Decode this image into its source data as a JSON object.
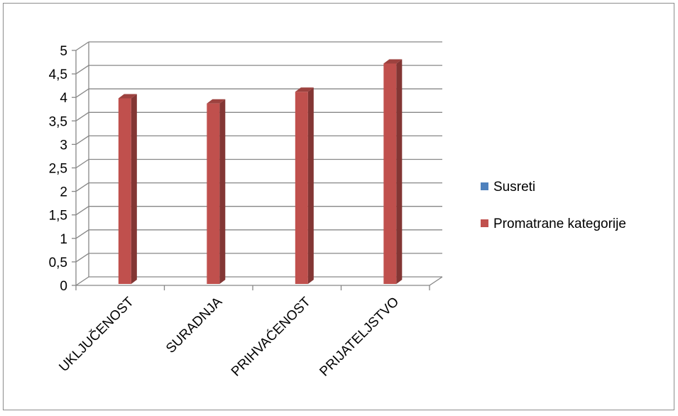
{
  "chart_data": {
    "type": "bar",
    "title": "",
    "xlabel": "",
    "ylabel": "",
    "categories": [
      "UKLJUČENOST",
      "SURADNJA",
      "PRIHVAĆENOST",
      "PRIJATELJSTVO"
    ],
    "series": [
      {
        "name": "Susreti",
        "values": [
          0,
          0,
          0,
          0
        ],
        "color": "#4f81bd"
      },
      {
        "name": "Promatrane kategorije",
        "values": [
          3.98,
          3.87,
          4.12,
          4.72
        ],
        "color": "#c0504d"
      }
    ],
    "y_ticks": [
      "0",
      "0,5",
      "1",
      "1,5",
      "2",
      "2,5",
      "3",
      "3,5",
      "4",
      "4,5",
      "5"
    ],
    "ylim": [
      0,
      5
    ],
    "grid": true,
    "legend_position": "right",
    "style": "3d-column"
  }
}
